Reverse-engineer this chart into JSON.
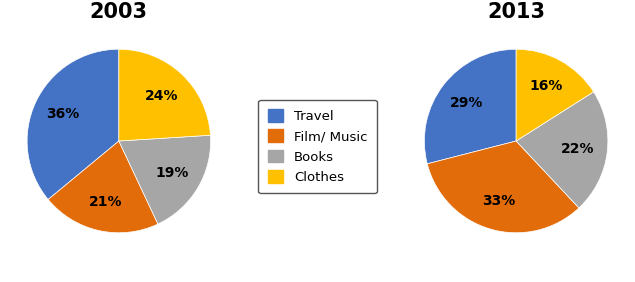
{
  "title_2003": "2003",
  "title_2013": "2013",
  "labels": [
    "Travel",
    "Film/ Music",
    "Books",
    "Clothes"
  ],
  "values_2003": [
    36,
    21,
    19,
    24
  ],
  "values_2013": [
    29,
    33,
    22,
    16
  ],
  "colors": [
    "#4472C4",
    "#E36C0A",
    "#A6A6A6",
    "#FFC000"
  ],
  "startangle_2003": 90,
  "startangle_2013": 90,
  "legend_labels": [
    "Travel",
    "Film/ Music",
    "Books",
    "Clothes"
  ],
  "title_fontsize": 15,
  "label_fontsize": 10,
  "label_color": "#000000",
  "background_color": "#ffffff"
}
